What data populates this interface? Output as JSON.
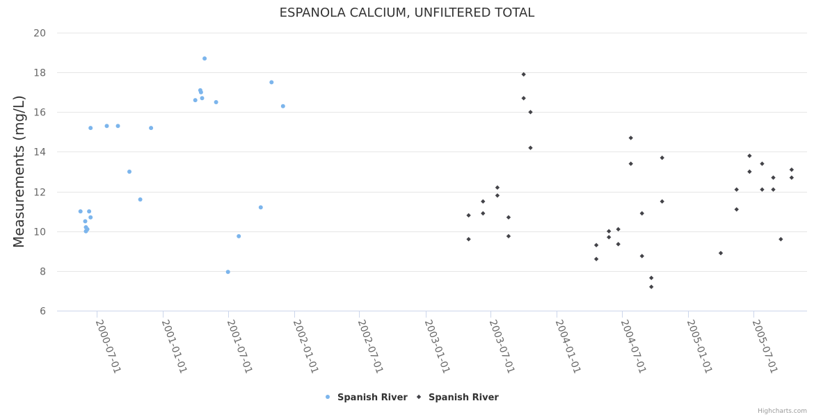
{
  "chart_data": {
    "type": "scatter",
    "title": "ESPANOLA CALCIUM, UNFILTERED TOTAL",
    "xlabel": "",
    "ylabel": "Measurements (mg/L)",
    "ylim": [
      6,
      20
    ],
    "yticks": [
      6,
      8,
      10,
      12,
      14,
      16,
      18,
      20
    ],
    "xlim": [
      "2000-05-01",
      "2005-11-01"
    ],
    "xticks": [
      "2000-07-01",
      "2001-01-01",
      "2001-07-01",
      "2002-01-01",
      "2002-07-01",
      "2003-01-01",
      "2003-07-01",
      "2004-01-01",
      "2004-07-01",
      "2005-01-01",
      "2005-07-01"
    ],
    "grid": "horizontal",
    "legend_position": "bottom-center",
    "series": [
      {
        "name": "Spanish River",
        "marker": "circle",
        "color": "#7cb5ec",
        "points": [
          [
            "2000-05-17",
            11.0
          ],
          [
            "2000-05-30",
            10.5
          ],
          [
            "2000-06-01",
            10.2
          ],
          [
            "2000-06-01",
            10.0
          ],
          [
            "2000-06-05",
            10.1
          ],
          [
            "2000-06-10",
            11.0
          ],
          [
            "2000-06-14",
            10.7
          ],
          [
            "2000-06-14",
            15.2
          ],
          [
            "2000-07-29",
            15.3
          ],
          [
            "2000-08-29",
            15.3
          ],
          [
            "2000-09-30",
            13.0
          ],
          [
            "2000-10-30",
            11.6
          ],
          [
            "2000-11-29",
            15.2
          ],
          [
            "2001-04-01",
            16.6
          ],
          [
            "2001-04-15",
            17.1
          ],
          [
            "2001-04-17",
            17.0
          ],
          [
            "2001-04-20",
            16.7
          ],
          [
            "2001-04-27",
            18.7
          ],
          [
            "2001-05-29",
            16.5
          ],
          [
            "2001-07-01",
            7.95
          ],
          [
            "2001-07-31",
            9.75
          ],
          [
            "2001-09-30",
            11.2
          ],
          [
            "2001-10-30",
            17.5
          ],
          [
            "2001-12-01",
            16.3
          ]
        ]
      },
      {
        "name": "Spanish River",
        "marker": "diamond",
        "color": "#434348",
        "points": [
          [
            "2003-05-01",
            10.8
          ],
          [
            "2003-05-01",
            9.6
          ],
          [
            "2003-06-10",
            11.5
          ],
          [
            "2003-06-10",
            10.9
          ],
          [
            "2003-07-20",
            12.2
          ],
          [
            "2003-07-20",
            11.8
          ],
          [
            "2003-08-20",
            10.7
          ],
          [
            "2003-08-20",
            9.75
          ],
          [
            "2003-10-01",
            17.9
          ],
          [
            "2003-10-01",
            16.7
          ],
          [
            "2003-10-20",
            16.0
          ],
          [
            "2003-10-20",
            14.2
          ],
          [
            "2004-04-20",
            9.3
          ],
          [
            "2004-04-20",
            8.6
          ],
          [
            "2004-05-25",
            10.0
          ],
          [
            "2004-05-25",
            9.7
          ],
          [
            "2004-06-20",
            10.1
          ],
          [
            "2004-06-20",
            9.35
          ],
          [
            "2004-07-25",
            14.7
          ],
          [
            "2004-07-25",
            13.4
          ],
          [
            "2004-08-25",
            10.9
          ],
          [
            "2004-08-25",
            8.75
          ],
          [
            "2004-09-20",
            7.65
          ],
          [
            "2004-09-20",
            7.2
          ],
          [
            "2004-10-20",
            13.7
          ],
          [
            "2004-10-20",
            11.5
          ],
          [
            "2005-04-01",
            8.9
          ],
          [
            "2005-05-15",
            12.1
          ],
          [
            "2005-05-15",
            11.1
          ],
          [
            "2005-06-20",
            13.8
          ],
          [
            "2005-06-20",
            13.0
          ],
          [
            "2005-07-25",
            13.4
          ],
          [
            "2005-07-25",
            12.1
          ],
          [
            "2005-08-25",
            12.7
          ],
          [
            "2005-08-25",
            12.1
          ],
          [
            "2005-09-15",
            9.6
          ],
          [
            "2005-10-15",
            13.1
          ],
          [
            "2005-10-15",
            12.7
          ]
        ]
      }
    ],
    "credits": "Highcharts.com"
  }
}
